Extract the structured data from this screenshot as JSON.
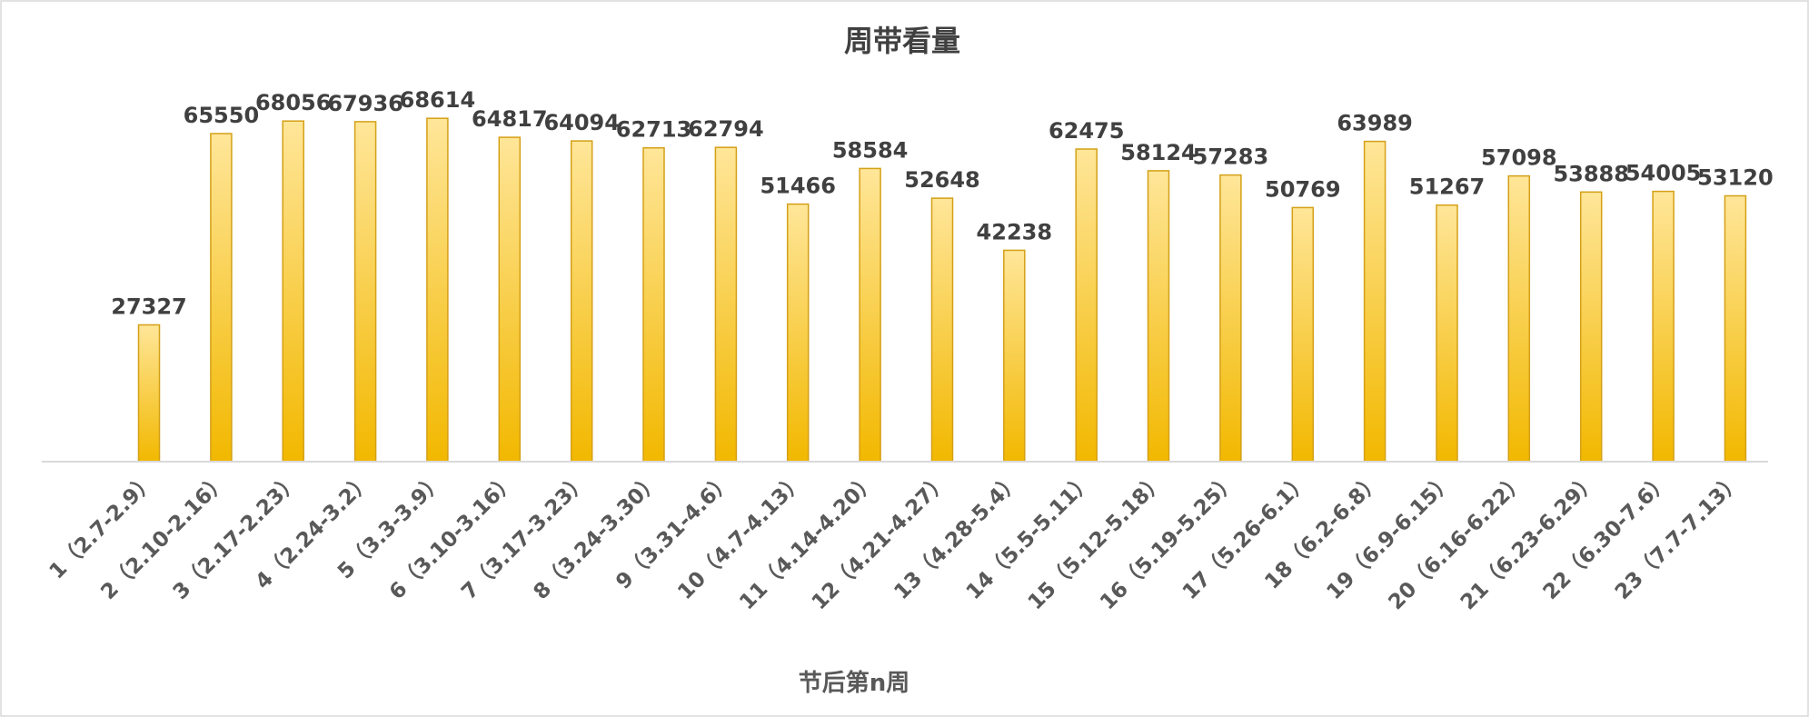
{
  "chart_data": {
    "type": "bar",
    "title": "周带看量",
    "xlabel": "节后第n周",
    "ylabel": "",
    "ylim": [
      0,
      75000
    ],
    "grid": false,
    "legend": "none",
    "colors": {
      "bar_top": "#FFE699",
      "bar_bottom": "#F2B800",
      "bar_stroke": "#D4A017",
      "axis": "#D9D9D9",
      "frame": "#D9D9D9"
    },
    "categories": [
      "1（2.7-2.9）",
      "2（2.10-2.16）",
      "3（2.17-2.23）",
      "4（2.24-3.2）",
      "5（3.3-3.9）",
      "6（3.10-3.16）",
      "7（3.17-3.23）",
      "8（3.24-3.30）",
      "9（3.31-4.6）",
      "10（4.7-4.13）",
      "11（4.14-4.20）",
      "12（4.21-4.27）",
      "13（4.28-5.4）",
      "14（5.5-5.11）",
      "15（5.12-5.18）",
      "16（5.19-5.25）",
      "17（5.26-6.1）",
      "18（6.2-6.8）",
      "19（6.9-6.15）",
      "20（6.16-6.22）",
      "21（6.23-6.29）",
      "22（6.30-7.6）",
      "23（7.7-7.13）"
    ],
    "values": [
      27327,
      65550,
      68056,
      67936,
      68614,
      64817,
      64094,
      62713,
      62794,
      51466,
      58584,
      52648,
      42238,
      62475,
      58124,
      57283,
      50769,
      63989,
      51267,
      57098,
      53888,
      54005,
      53120
    ]
  }
}
